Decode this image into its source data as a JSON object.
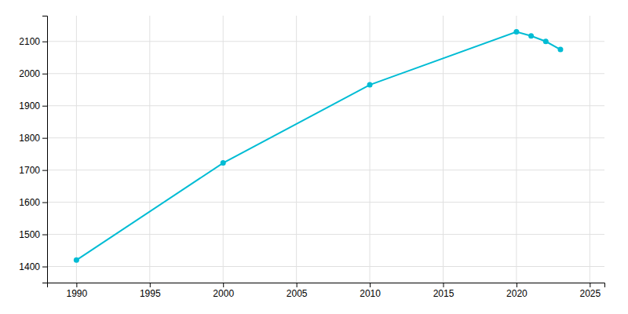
{
  "chart_data": {
    "type": "line",
    "x": [
      1990,
      2000,
      2010,
      2020,
      2021,
      2022,
      2023
    ],
    "values": [
      1420,
      1722,
      1965,
      2130,
      2117,
      2100,
      2075
    ],
    "color": "#00bcd4",
    "marker": "circle",
    "xlim": [
      1988,
      2026
    ],
    "ylim": [
      1350,
      2180
    ],
    "xticks": [
      1990,
      1995,
      2000,
      2005,
      2010,
      2015,
      2020,
      2025
    ],
    "yticks": [
      1400,
      1500,
      1600,
      1700,
      1800,
      1900,
      2000,
      2100
    ],
    "grid": true
  }
}
